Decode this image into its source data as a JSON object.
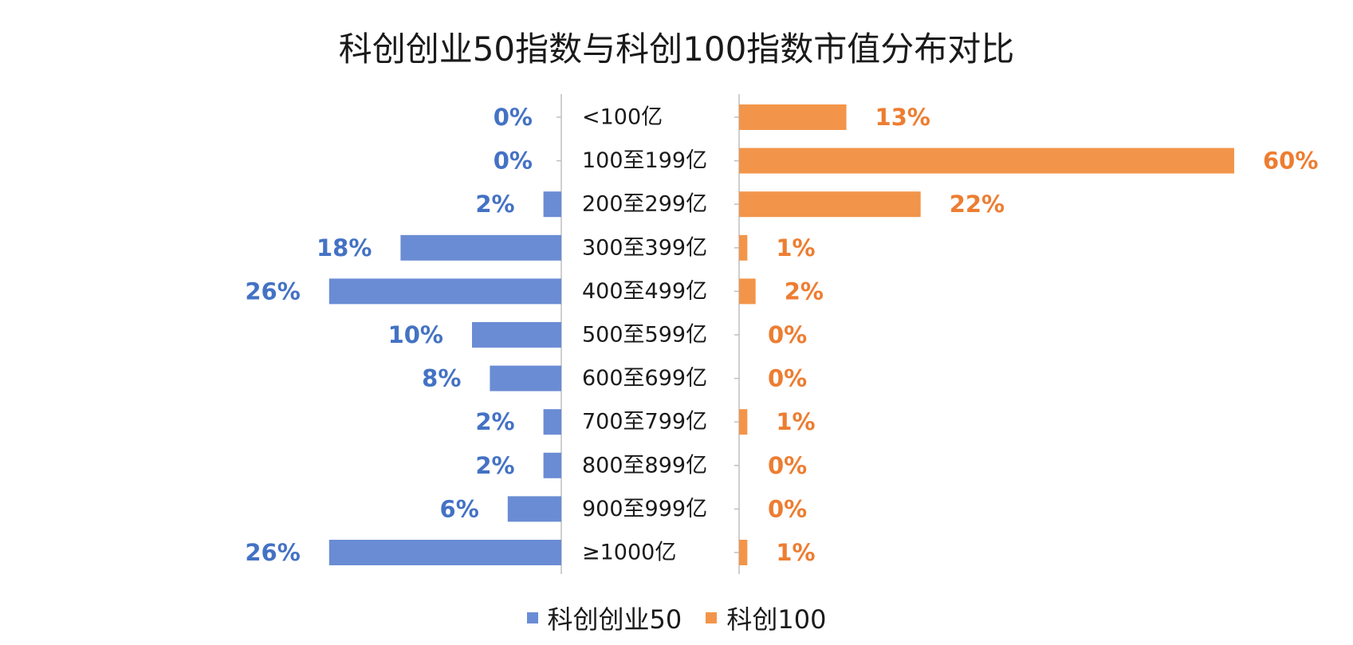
{
  "chart_data": {
    "type": "bar",
    "title": "科创创业50指数与科创100指数市值分布对比",
    "categories": [
      "<100亿",
      "100至199亿",
      "200至299亿",
      "300至399亿",
      "400至499亿",
      "500至599亿",
      "600至699亿",
      "700至799亿",
      "800至899亿",
      "900至999亿",
      "≥1000亿"
    ],
    "series": [
      {
        "name": "科创创业50",
        "color": "#6a8cd4",
        "label_color": "#4472c4",
        "values": [
          0,
          0,
          2,
          18,
          26,
          10,
          8,
          2,
          2,
          6,
          26
        ],
        "labels": [
          "0%",
          "0%",
          "2%",
          "18%",
          "26%",
          "10%",
          "8%",
          "2%",
          "2%",
          "6%",
          "26%"
        ]
      },
      {
        "name": "科创100",
        "color": "#f2954a",
        "label_color": "#ed7d31",
        "values": [
          13,
          60,
          22,
          1,
          2,
          0,
          0,
          1,
          0,
          0,
          1
        ],
        "labels": [
          "13%",
          "60%",
          "22%",
          "1%",
          "2%",
          "0%",
          "0%",
          "1%",
          "0%",
          "0%",
          "1%"
        ]
      }
    ],
    "layout_style": "butterfly",
    "legend_position": "bottom",
    "grid": false
  }
}
